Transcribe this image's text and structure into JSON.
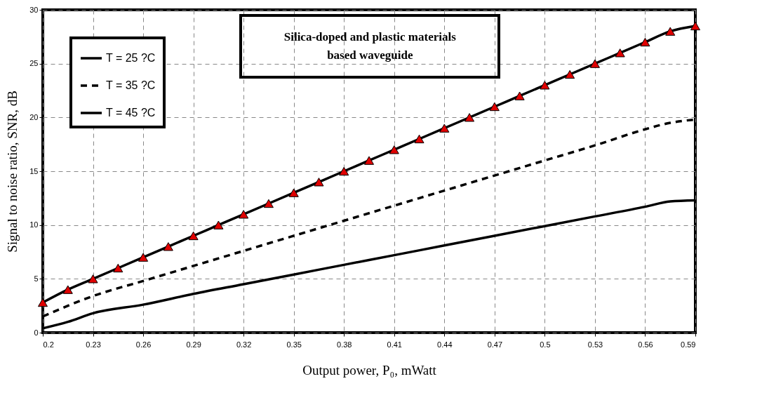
{
  "chart_data": {
    "type": "line",
    "xlabel": "Output power, P₀, mWatt",
    "ylabel": "Signal to noise ratio, SNR, dB",
    "annotations": [
      "Silica-doped and plastic materials\nbased waveguide"
    ],
    "x": [
      0.2,
      0.215,
      0.23,
      0.245,
      0.26,
      0.275,
      0.29,
      0.305,
      0.32,
      0.335,
      0.35,
      0.365,
      0.38,
      0.395,
      0.41,
      0.425,
      0.44,
      0.455,
      0.47,
      0.485,
      0.5,
      0.515,
      0.53,
      0.545,
      0.56,
      0.575,
      0.59
    ],
    "series": [
      {
        "name": "T = 25 ?C",
        "color": "#e00000",
        "marker": "triangle",
        "line_style": "solid",
        "values": [
          2.8,
          4,
          5,
          6,
          7,
          8,
          9,
          10,
          11,
          12,
          13,
          14,
          15,
          16,
          17,
          18,
          19,
          20,
          21,
          22,
          23,
          24,
          25,
          26,
          27,
          28,
          28.5
        ]
      },
      {
        "name": "T = 35 ?C",
        "color": "#000000",
        "line_style": "dashed",
        "x": [
          0.2,
          0.23,
          0.26,
          0.29,
          0.32,
          0.35,
          0.38,
          0.41,
          0.44,
          0.47,
          0.5,
          0.53,
          0.56,
          0.575,
          0.59
        ],
        "values": [
          1.5,
          3.4,
          4.8,
          6.2,
          7.6,
          9,
          10.4,
          11.8,
          13.2,
          14.6,
          16,
          17.4,
          18.9,
          19.5,
          19.8
        ]
      },
      {
        "name": "T = 45 ?C",
        "color": "#000000",
        "line_style": "solid",
        "x": [
          0.2,
          0.215,
          0.23,
          0.26,
          0.29,
          0.32,
          0.35,
          0.38,
          0.41,
          0.44,
          0.47,
          0.5,
          0.53,
          0.56,
          0.575,
          0.59
        ],
        "values": [
          0.4,
          1,
          1.8,
          2.6,
          3.6,
          4.5,
          5.4,
          6.3,
          7.2,
          8.1,
          9,
          9.9,
          10.8,
          11.7,
          12.2,
          12.3
        ]
      }
    ],
    "xlim": [
      0.2,
      0.59
    ],
    "xticks": [
      0.2,
      0.23,
      0.26,
      0.29,
      0.32,
      0.35,
      0.38,
      0.41,
      0.44,
      0.47,
      0.5,
      0.53,
      0.56,
      0.59
    ],
    "ylim": [
      0,
      30
    ],
    "yticks": [
      0,
      5,
      10,
      15,
      20,
      25,
      30
    ],
    "grid": true,
    "legend": "top left"
  }
}
